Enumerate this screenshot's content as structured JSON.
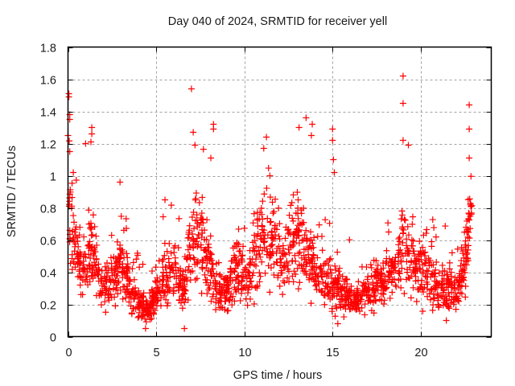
{
  "chart_data": {
    "type": "scatter",
    "title": "Day 040 of 2024, SRMTID for receiver yell",
    "xlabel": "GPS time / hours",
    "ylabel": "SRMTID / TECUs",
    "xlim": [
      0,
      24
    ],
    "ylim": [
      0,
      1.8
    ],
    "xticks": [
      0,
      5,
      10,
      15,
      20
    ],
    "xtick_labels": [
      "0",
      "5",
      "10",
      "15",
      "20"
    ],
    "yticks": [
      0,
      0.2,
      0.4,
      0.6,
      0.8,
      1.0,
      1.2,
      1.4,
      1.6,
      1.8
    ],
    "ytick_labels": [
      "0",
      "0.2",
      "0.4",
      "0.6",
      "0.8",
      "1",
      "1.2",
      "1.4",
      "1.6",
      "1.8"
    ],
    "grid": true,
    "legend": "none",
    "marker": "plus",
    "series": [
      {
        "name": "SRMTID",
        "color": "#ff0000",
        "trend_x": [
          0.0,
          0.1,
          0.3,
          0.6,
          1.0,
          1.4,
          1.8,
          2.2,
          2.6,
          3.0,
          3.4,
          3.8,
          4.2,
          4.6,
          5.0,
          5.4,
          5.8,
          6.2,
          6.6,
          7.0,
          7.4,
          7.8,
          8.2,
          8.6,
          9.0,
          9.4,
          9.8,
          10.2,
          10.6,
          11.0,
          11.4,
          11.8,
          12.2,
          12.6,
          13.0,
          13.4,
          13.8,
          14.2,
          14.6,
          15.0,
          15.4,
          15.8,
          16.2,
          16.6,
          17.0,
          17.4,
          17.8,
          18.2,
          18.6,
          19.0,
          19.4,
          19.8,
          20.2,
          20.6,
          21.0,
          21.4,
          21.8,
          22.2,
          22.6,
          22.9
        ],
        "trend_y": [
          0.95,
          0.85,
          0.6,
          0.45,
          0.4,
          0.55,
          0.3,
          0.3,
          0.35,
          0.45,
          0.35,
          0.25,
          0.18,
          0.2,
          0.25,
          0.38,
          0.4,
          0.35,
          0.3,
          0.6,
          0.65,
          0.5,
          0.4,
          0.25,
          0.3,
          0.35,
          0.45,
          0.35,
          0.5,
          0.6,
          0.7,
          0.55,
          0.45,
          0.55,
          0.6,
          0.5,
          0.45,
          0.4,
          0.35,
          0.3,
          0.3,
          0.25,
          0.22,
          0.25,
          0.28,
          0.3,
          0.33,
          0.4,
          0.45,
          0.6,
          0.5,
          0.42,
          0.4,
          0.35,
          0.3,
          0.3,
          0.28,
          0.3,
          0.5,
          0.8
        ],
        "notable_points": [
          {
            "x": 0.05,
            "y": 1.51
          },
          {
            "x": 0.05,
            "y": 1.49
          },
          {
            "x": 0.1,
            "y": 1.38
          },
          {
            "x": 0.1,
            "y": 1.35
          },
          {
            "x": 0.0,
            "y": 1.25
          },
          {
            "x": 0.1,
            "y": 1.15
          },
          {
            "x": 0.3,
            "y": 1.02
          },
          {
            "x": 1.0,
            "y": 1.2
          },
          {
            "x": 1.35,
            "y": 1.3
          },
          {
            "x": 1.35,
            "y": 1.26
          },
          {
            "x": 1.3,
            "y": 1.21
          },
          {
            "x": 2.95,
            "y": 0.96
          },
          {
            "x": 5.5,
            "y": 0.85
          },
          {
            "x": 7.0,
            "y": 1.54
          },
          {
            "x": 7.1,
            "y": 1.27
          },
          {
            "x": 7.2,
            "y": 1.19
          },
          {
            "x": 8.25,
            "y": 1.32
          },
          {
            "x": 8.25,
            "y": 1.29
          },
          {
            "x": 8.1,
            "y": 1.11
          },
          {
            "x": 11.25,
            "y": 1.24
          },
          {
            "x": 11.1,
            "y": 1.17
          },
          {
            "x": 13.5,
            "y": 1.36
          },
          {
            "x": 13.1,
            "y": 1.3
          },
          {
            "x": 13.8,
            "y": 1.25
          },
          {
            "x": 13.85,
            "y": 1.32
          },
          {
            "x": 15.0,
            "y": 1.29
          },
          {
            "x": 15.0,
            "y": 1.22
          },
          {
            "x": 15.05,
            "y": 1.1
          },
          {
            "x": 15.1,
            "y": 1.02
          },
          {
            "x": 19.0,
            "y": 1.62
          },
          {
            "x": 19.0,
            "y": 1.45
          },
          {
            "x": 19.0,
            "y": 1.22
          },
          {
            "x": 19.3,
            "y": 1.19
          },
          {
            "x": 22.75,
            "y": 1.44
          },
          {
            "x": 22.75,
            "y": 1.29
          },
          {
            "x": 22.75,
            "y": 1.11
          },
          {
            "x": 4.4,
            "y": 0.05
          },
          {
            "x": 6.6,
            "y": 0.05
          },
          {
            "x": 15.3,
            "y": 0.08
          },
          {
            "x": 21.45,
            "y": 0.1
          }
        ]
      }
    ]
  }
}
